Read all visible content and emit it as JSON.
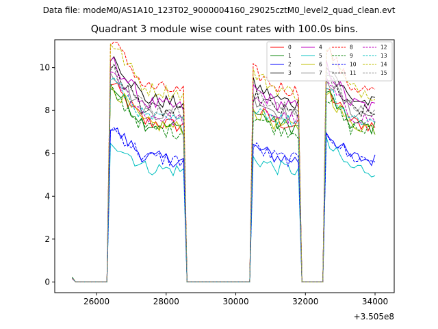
{
  "suptitle": "Data file: modeM0/AS1A10_123T02_9000004160_29025cztM0_level2_quad_clean.evt",
  "chart_data": {
    "type": "line",
    "title": "Quadrant 3 module wise count rates with 100.0s bins.",
    "xlabel": "",
    "ylabel": "",
    "x_offset_label": "+3.505e8",
    "x_offset": 350500000,
    "xlim": [
      24800,
      34550
    ],
    "ylim": [
      -0.5,
      11.3
    ],
    "x_ticks": [
      26000,
      28000,
      30000,
      32000,
      34000
    ],
    "x_tick_labels": [
      "26000",
      "28000",
      "30000",
      "32000",
      "34000"
    ],
    "y_ticks": [
      0,
      2,
      4,
      6,
      8,
      10
    ],
    "y_tick_labels": [
      "0",
      "2",
      "4",
      "6",
      "8",
      "10"
    ],
    "legend_location": "upper right",
    "grid": false,
    "time_profile": {
      "x_start": 25300,
      "bin": 100,
      "onsets": [
        26360,
        30490,
        32580
      ],
      "offsets": [
        28590,
        31890,
        34100
      ],
      "end": 34050
    },
    "series": [
      {
        "name": "0",
        "color": "#ff0000",
        "style": "solid",
        "level": 7.7
      },
      {
        "name": "1",
        "color": "#008000",
        "style": "solid",
        "level": 7.6
      },
      {
        "name": "2",
        "color": "#0000ff",
        "style": "solid",
        "level": 6.0
      },
      {
        "name": "3",
        "color": "#000000",
        "style": "solid",
        "level": 8.8
      },
      {
        "name": "4",
        "color": "#bf00bf",
        "style": "solid",
        "level": 8.6
      },
      {
        "name": "5",
        "color": "#00bfbf",
        "style": "solid",
        "level": 5.5
      },
      {
        "name": "6",
        "color": "#bfbf00",
        "style": "solid",
        "level": 7.6
      },
      {
        "name": "7",
        "color": "#808080",
        "style": "solid",
        "level": 8.2
      },
      {
        "name": "8",
        "color": "#ff0000",
        "style": "dashed",
        "level": 9.4
      },
      {
        "name": "9",
        "color": "#008000",
        "style": "dashed",
        "level": 7.4
      },
      {
        "name": "10",
        "color": "#0000ff",
        "style": "dashed",
        "level": 6.0
      },
      {
        "name": "11",
        "color": "#000000",
        "style": "dashed",
        "level": 8.3
      },
      {
        "name": "12",
        "color": "#bf00bf",
        "style": "dashed",
        "level": 8.0
      },
      {
        "name": "13",
        "color": "#00bfbf",
        "style": "dashed",
        "level": 7.9
      },
      {
        "name": "14",
        "color": "#bfbf00",
        "style": "dashed",
        "level": 9.3
      },
      {
        "name": "15",
        "color": "#808080",
        "style": "dashed",
        "level": 8.4
      }
    ]
  }
}
